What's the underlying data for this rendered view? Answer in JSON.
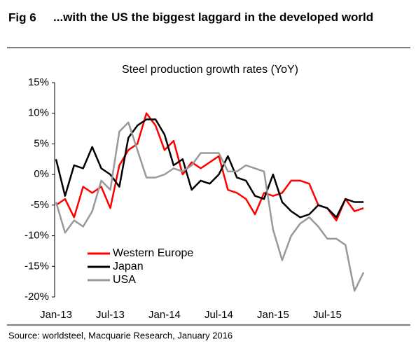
{
  "header": {
    "fig": "Fig 6",
    "title": "...with the US the biggest laggard in the developed world"
  },
  "chart_data": {
    "type": "line",
    "title": "Steel production growth rates (YoY)",
    "categories": [
      "Jan-13",
      null,
      null,
      null,
      null,
      null,
      "Jul-13",
      null,
      null,
      null,
      null,
      null,
      "Jan-14",
      null,
      null,
      null,
      null,
      null,
      "Jul-14",
      null,
      null,
      null,
      null,
      null,
      "Jan-15",
      null,
      null,
      null,
      null,
      null,
      "Jul-15",
      null,
      null,
      null,
      null
    ],
    "series": [
      {
        "name": "Western Europe",
        "color": "#ff0000",
        "values": [
          -5,
          -4,
          -7,
          -2,
          -3,
          -2,
          -5.5,
          1.5,
          4,
          5,
          10,
          8,
          4,
          5.5,
          0,
          2,
          1,
          2,
          3,
          -2.5,
          -3,
          -4,
          -6.5,
          -3,
          -3.5,
          -3,
          -1,
          -1,
          -1.5,
          -5,
          -5.5,
          -7.5,
          -4,
          -6,
          -5.5
        ]
      },
      {
        "name": "Japan",
        "color": "#000000",
        "values": [
          2.5,
          -3.5,
          1.5,
          1,
          4.5,
          1,
          0,
          -2,
          6,
          8,
          9,
          9,
          6.5,
          1.5,
          2.5,
          -2.5,
          -1,
          -1.5,
          0,
          3,
          -0.5,
          -1,
          -3.5,
          -4,
          0,
          -4.5,
          -6,
          -7,
          -6.5,
          -5,
          -5.5,
          -7,
          -4,
          -4.5,
          -4.5
        ]
      },
      {
        "name": "USA",
        "color": "#999999",
        "values": [
          -4.5,
          -9.5,
          -7.5,
          -8.5,
          -6,
          -1,
          -2.5,
          7,
          8.5,
          4,
          -0.5,
          -0.5,
          0,
          1,
          0.5,
          1.5,
          3.5,
          3.5,
          3.5,
          0.5,
          0.5,
          1.5,
          1,
          0.5,
          -9,
          -14,
          -10,
          -8,
          -7,
          -8.5,
          -10.5,
          -10.5,
          -11.5,
          -19,
          -16
        ]
      }
    ],
    "ylim": [
      -20,
      15
    ],
    "yticks": [
      {
        "value": 15,
        "label": "15%"
      },
      {
        "value": 10,
        "label": "10%"
      },
      {
        "value": 5,
        "label": "5%"
      },
      {
        "value": 0,
        "label": "0%"
      },
      {
        "value": -5,
        "label": "-5%"
      },
      {
        "value": -10,
        "label": "-10%"
      },
      {
        "value": -15,
        "label": "-15%"
      },
      {
        "value": -20,
        "label": "-20%"
      }
    ],
    "legend": "lower-left",
    "grid": false
  },
  "source": "Source: worldsteel, Macquarie Research, January 2016"
}
